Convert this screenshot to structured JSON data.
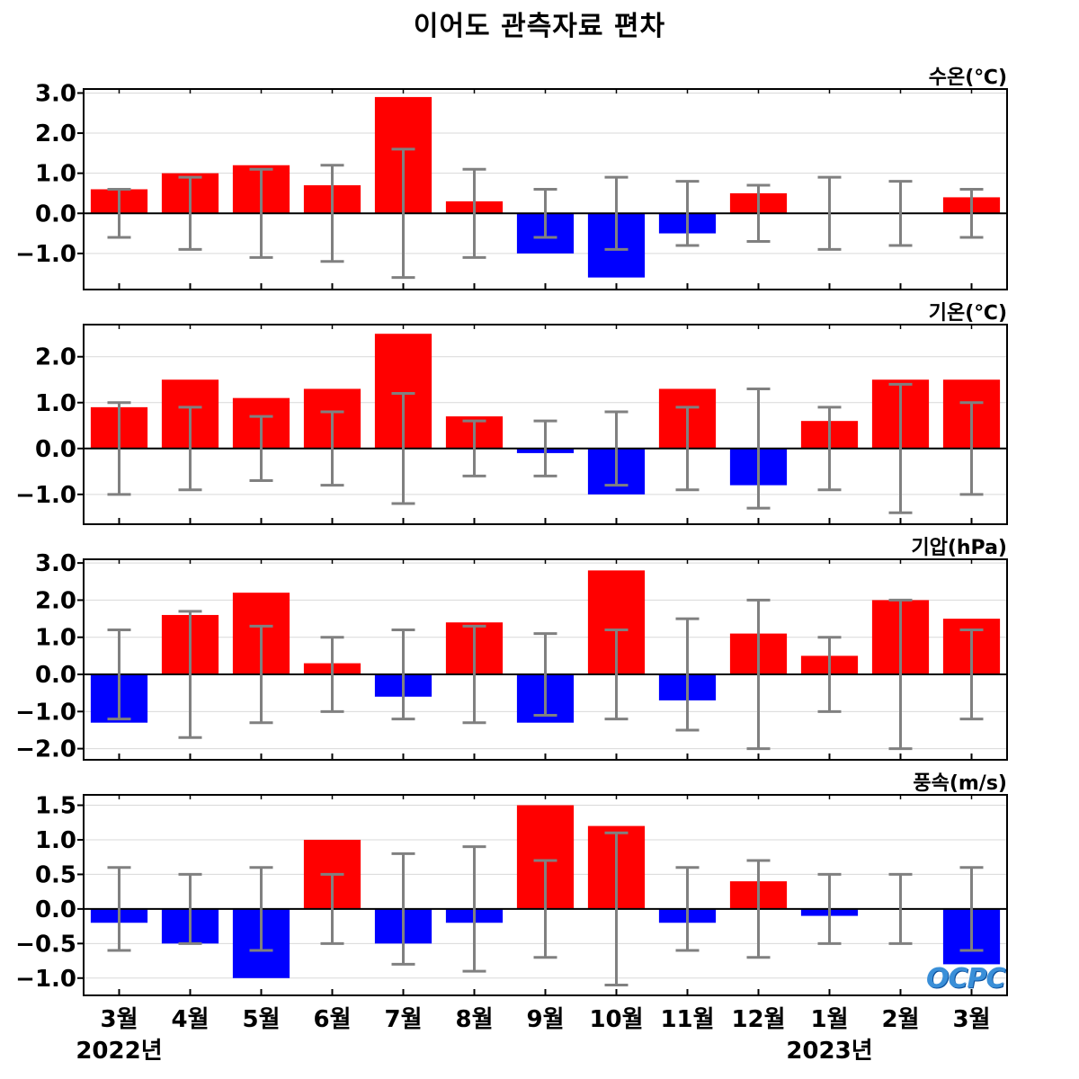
{
  "title": "이어도 관측자료 편차",
  "colors": {
    "positive": "#ff0000",
    "negative": "#0000ff",
    "errorbar": "#808080",
    "zero": "#000000",
    "grid": "#d9d9d9"
  },
  "months": [
    "3월",
    "4월",
    "5월",
    "6월",
    "7월",
    "8월",
    "9월",
    "10월",
    "11월",
    "12월",
    "1월",
    "2월",
    "3월"
  ],
  "years": [
    {
      "label": "2022년",
      "month_index": 0
    },
    {
      "label": "2023년",
      "month_index": 10
    }
  ],
  "logo": "OCPC",
  "chart_data": [
    {
      "type": "bar",
      "unit_label": "수온(℃)",
      "categories": [
        "3월",
        "4월",
        "5월",
        "6월",
        "7월",
        "8월",
        "9월",
        "10월",
        "11월",
        "12월",
        "1월",
        "2월",
        "3월"
      ],
      "values": [
        0.6,
        1.0,
        1.2,
        0.7,
        2.9,
        0.3,
        -1.0,
        -1.6,
        -0.5,
        0.5,
        0.0,
        0.0,
        0.4
      ],
      "errors": [
        0.6,
        0.9,
        1.1,
        1.2,
        1.6,
        1.1,
        0.6,
        0.9,
        0.8,
        0.7,
        0.9,
        0.8,
        0.6
      ],
      "ylim": [
        -1.9,
        3.1
      ],
      "yticks": [
        -1.0,
        0.0,
        1.0,
        2.0,
        3.0
      ],
      "ytick_labels": [
        "−1.0",
        "0.0",
        "1.0",
        "2.0",
        "3.0"
      ]
    },
    {
      "type": "bar",
      "unit_label": "기온(℃)",
      "categories": [
        "3월",
        "4월",
        "5월",
        "6월",
        "7월",
        "8월",
        "9월",
        "10월",
        "11월",
        "12월",
        "1월",
        "2월",
        "3월"
      ],
      "values": [
        0.9,
        1.5,
        1.1,
        1.3,
        2.5,
        0.7,
        -0.1,
        -1.0,
        1.3,
        -0.8,
        0.6,
        1.5,
        1.5
      ],
      "errors": [
        1.0,
        0.9,
        0.7,
        0.8,
        1.2,
        0.6,
        0.6,
        0.8,
        0.9,
        1.3,
        0.9,
        1.4,
        1.0
      ],
      "ylim": [
        -1.65,
        2.7
      ],
      "yticks": [
        -1.0,
        0.0,
        1.0,
        2.0
      ],
      "ytick_labels": [
        "−1.0",
        "0.0",
        "1.0",
        "2.0"
      ]
    },
    {
      "type": "bar",
      "unit_label": "기압(hPa)",
      "categories": [
        "3월",
        "4월",
        "5월",
        "6월",
        "7월",
        "8월",
        "9월",
        "10월",
        "11월",
        "12월",
        "1월",
        "2월",
        "3월"
      ],
      "values": [
        -1.3,
        1.6,
        2.2,
        0.3,
        -0.6,
        1.4,
        -1.3,
        2.8,
        -0.7,
        1.1,
        0.5,
        2.0,
        1.5
      ],
      "errors": [
        1.2,
        1.7,
        1.3,
        1.0,
        1.2,
        1.3,
        1.1,
        1.2,
        1.5,
        2.0,
        1.0,
        2.0,
        1.2
      ],
      "ylim": [
        -2.3,
        3.1
      ],
      "yticks": [
        -2.0,
        -1.0,
        0.0,
        1.0,
        2.0,
        3.0
      ],
      "ytick_labels": [
        "−2.0",
        "−1.0",
        "0.0",
        "1.0",
        "2.0",
        "3.0"
      ]
    },
    {
      "type": "bar",
      "unit_label": "풍속(m/s)",
      "categories": [
        "3월",
        "4월",
        "5월",
        "6월",
        "7월",
        "8월",
        "9월",
        "10월",
        "11월",
        "12월",
        "1월",
        "2월",
        "3월"
      ],
      "values": [
        -0.2,
        -0.5,
        -1.0,
        1.0,
        -0.5,
        -0.2,
        1.5,
        1.2,
        -0.2,
        0.4,
        -0.1,
        0.0,
        -0.8
      ],
      "errors": [
        0.6,
        0.5,
        0.6,
        0.5,
        0.8,
        0.9,
        0.7,
        1.1,
        0.6,
        0.7,
        0.5,
        0.5,
        0.6
      ],
      "ylim": [
        -1.25,
        1.65
      ],
      "yticks": [
        -1.0,
        -0.5,
        0.0,
        0.5,
        1.0,
        1.5
      ],
      "ytick_labels": [
        "−1.0",
        "−0.5",
        "0.0",
        "0.5",
        "1.0",
        "1.5"
      ]
    }
  ]
}
